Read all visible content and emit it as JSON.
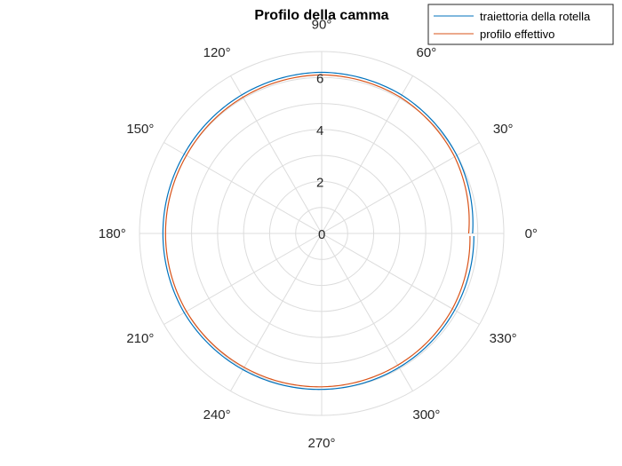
{
  "chart_data": {
    "type": "line",
    "coordinate_system": "polar",
    "title": "Profilo della camma",
    "theta_tick_labels": [
      "0°",
      "30°",
      "60°",
      "90°",
      "120°",
      "150°",
      "180°",
      "210°",
      "240°",
      "270°",
      "300°",
      "330°"
    ],
    "r_tick_labels": [
      "0",
      "2",
      "4",
      "6"
    ],
    "r_ticks": [
      0,
      2,
      4,
      6
    ],
    "rlim": [
      0,
      7
    ],
    "grid": true,
    "legend_position": "top-right",
    "series": [
      {
        "name": "traiettoria della rotella",
        "color": "#0072BD",
        "theta_deg": [
          0,
          30,
          60,
          90,
          120,
          150,
          180,
          210,
          240,
          270,
          300,
          330,
          359
        ],
        "r": [
          5.8,
          6.0,
          6.15,
          6.2,
          6.15,
          6.1,
          6.1,
          6.1,
          6.05,
          6.0,
          5.95,
          5.9,
          5.85
        ]
      },
      {
        "name": "profilo effettivo",
        "color": "#D95319",
        "theta_deg": [
          0,
          30,
          60,
          90,
          120,
          150,
          180,
          210,
          240,
          270,
          300,
          330,
          359
        ],
        "r": [
          5.65,
          5.9,
          6.05,
          6.1,
          6.05,
          6.0,
          6.0,
          6.0,
          5.95,
          5.9,
          5.85,
          5.8,
          5.7
        ]
      }
    ]
  }
}
